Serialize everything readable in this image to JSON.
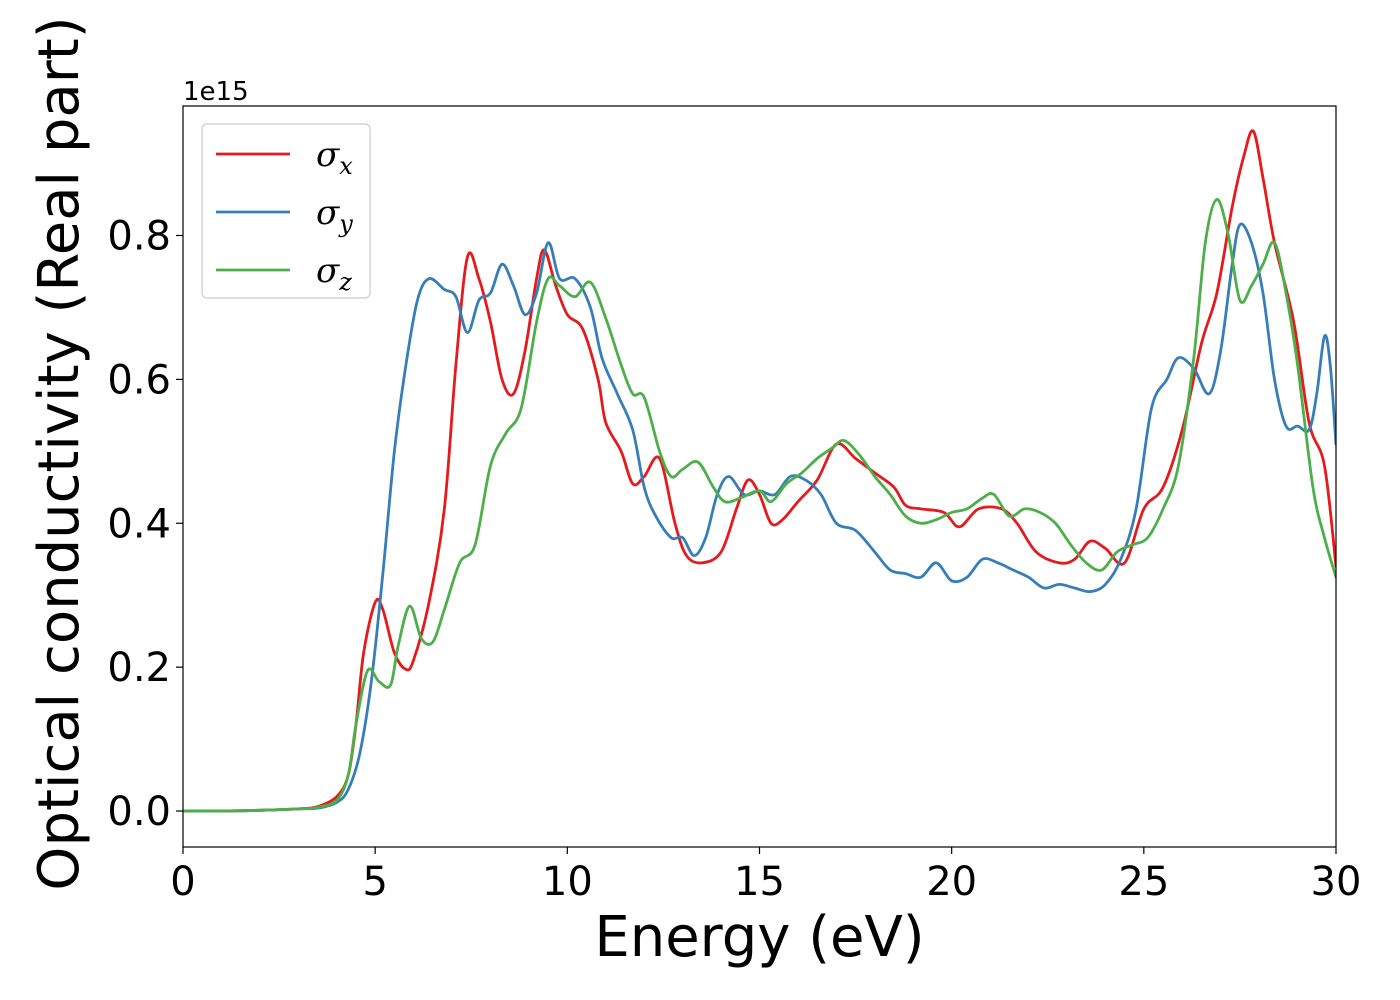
{
  "chart_data": {
    "type": "line",
    "title": "",
    "xlabel": "Energy (eV)",
    "ylabel": "Optical conductivity (Real part)",
    "y_offset_text": "1e15",
    "xlim": [
      0,
      30
    ],
    "ylim": [
      -0.05,
      0.98
    ],
    "xticks": [
      0,
      5,
      10,
      15,
      20,
      25,
      30
    ],
    "xtick_labels": [
      "0",
      "5",
      "10",
      "15",
      "20",
      "25",
      "30"
    ],
    "yticks": [
      0.0,
      0.2,
      0.4,
      0.6,
      0.8
    ],
    "ytick_labels": [
      "0.0",
      "0.2",
      "0.4",
      "0.6",
      "0.8"
    ],
    "grid": false,
    "legend_position": "top-left",
    "series": [
      {
        "name": "σx",
        "symbol": "σ",
        "subscript": "x",
        "color": "#e41a1c",
        "points": [
          [
            0,
            0
          ],
          [
            1,
            0
          ],
          [
            2,
            0.001
          ],
          [
            3,
            0.003
          ],
          [
            3.5,
            0.006
          ],
          [
            4,
            0.02
          ],
          [
            4.3,
            0.05
          ],
          [
            4.5,
            0.12
          ],
          [
            4.7,
            0.22
          ],
          [
            5,
            0.29
          ],
          [
            5.2,
            0.28
          ],
          [
            5.5,
            0.22
          ],
          [
            5.8,
            0.197
          ],
          [
            6,
            0.21
          ],
          [
            6.4,
            0.29
          ],
          [
            6.8,
            0.42
          ],
          [
            7.1,
            0.62
          ],
          [
            7.4,
            0.77
          ],
          [
            7.7,
            0.74
          ],
          [
            8,
            0.68
          ],
          [
            8.3,
            0.6
          ],
          [
            8.6,
            0.58
          ],
          [
            8.9,
            0.64
          ],
          [
            9.2,
            0.74
          ],
          [
            9.4,
            0.78
          ],
          [
            9.7,
            0.73
          ],
          [
            10,
            0.69
          ],
          [
            10.4,
            0.67
          ],
          [
            10.8,
            0.6
          ],
          [
            11,
            0.54
          ],
          [
            11.4,
            0.5
          ],
          [
            11.7,
            0.455
          ],
          [
            12,
            0.465
          ],
          [
            12.4,
            0.49
          ],
          [
            12.8,
            0.4
          ],
          [
            13.1,
            0.355
          ],
          [
            13.5,
            0.345
          ],
          [
            14,
            0.36
          ],
          [
            14.4,
            0.42
          ],
          [
            14.7,
            0.46
          ],
          [
            15,
            0.44
          ],
          [
            15.3,
            0.4
          ],
          [
            15.6,
            0.405
          ],
          [
            16,
            0.43
          ],
          [
            16.5,
            0.46
          ],
          [
            17,
            0.51
          ],
          [
            17.5,
            0.49
          ],
          [
            18,
            0.47
          ],
          [
            18.5,
            0.45
          ],
          [
            18.8,
            0.425
          ],
          [
            19.2,
            0.42
          ],
          [
            19.8,
            0.415
          ],
          [
            20.2,
            0.395
          ],
          [
            20.7,
            0.42
          ],
          [
            21.3,
            0.42
          ],
          [
            21.7,
            0.4
          ],
          [
            22.2,
            0.36
          ],
          [
            22.8,
            0.345
          ],
          [
            23.2,
            0.35
          ],
          [
            23.6,
            0.375
          ],
          [
            24,
            0.365
          ],
          [
            24.5,
            0.345
          ],
          [
            25,
            0.42
          ],
          [
            25.5,
            0.45
          ],
          [
            26,
            0.53
          ],
          [
            26.5,
            0.65
          ],
          [
            26.9,
            0.72
          ],
          [
            27.3,
            0.84
          ],
          [
            27.6,
            0.91
          ],
          [
            27.85,
            0.945
          ],
          [
            28.1,
            0.88
          ],
          [
            28.4,
            0.79
          ],
          [
            28.9,
            0.68
          ],
          [
            29.3,
            0.54
          ],
          [
            29.7,
            0.48
          ],
          [
            30,
            0.34
          ]
        ]
      },
      {
        "name": "σy",
        "symbol": "σ",
        "subscript": "y",
        "color": "#377eb8",
        "points": [
          [
            0,
            0
          ],
          [
            1,
            0
          ],
          [
            2,
            0.001
          ],
          [
            3,
            0.003
          ],
          [
            3.5,
            0.004
          ],
          [
            4,
            0.012
          ],
          [
            4.3,
            0.03
          ],
          [
            4.6,
            0.08
          ],
          [
            4.9,
            0.18
          ],
          [
            5.2,
            0.33
          ],
          [
            5.5,
            0.5
          ],
          [
            5.8,
            0.62
          ],
          [
            6.1,
            0.71
          ],
          [
            6.4,
            0.74
          ],
          [
            6.8,
            0.725
          ],
          [
            7.1,
            0.715
          ],
          [
            7.4,
            0.665
          ],
          [
            7.7,
            0.71
          ],
          [
            8,
            0.72
          ],
          [
            8.3,
            0.76
          ],
          [
            8.6,
            0.73
          ],
          [
            8.9,
            0.69
          ],
          [
            9.2,
            0.72
          ],
          [
            9.5,
            0.79
          ],
          [
            9.8,
            0.74
          ],
          [
            10.2,
            0.74
          ],
          [
            10.6,
            0.7
          ],
          [
            10.9,
            0.63
          ],
          [
            11.3,
            0.58
          ],
          [
            11.7,
            0.53
          ],
          [
            12,
            0.45
          ],
          [
            12.3,
            0.41
          ],
          [
            12.7,
            0.38
          ],
          [
            13,
            0.38
          ],
          [
            13.3,
            0.355
          ],
          [
            13.6,
            0.38
          ],
          [
            13.9,
            0.44
          ],
          [
            14.2,
            0.465
          ],
          [
            14.6,
            0.44
          ],
          [
            15,
            0.445
          ],
          [
            15.4,
            0.44
          ],
          [
            15.8,
            0.465
          ],
          [
            16.2,
            0.46
          ],
          [
            16.6,
            0.44
          ],
          [
            17,
            0.4
          ],
          [
            17.5,
            0.39
          ],
          [
            18,
            0.36
          ],
          [
            18.4,
            0.335
          ],
          [
            18.8,
            0.33
          ],
          [
            19.2,
            0.325
          ],
          [
            19.6,
            0.345
          ],
          [
            20,
            0.32
          ],
          [
            20.4,
            0.325
          ],
          [
            20.8,
            0.35
          ],
          [
            21.2,
            0.345
          ],
          [
            21.6,
            0.335
          ],
          [
            22,
            0.325
          ],
          [
            22.4,
            0.31
          ],
          [
            22.8,
            0.315
          ],
          [
            23.2,
            0.31
          ],
          [
            23.6,
            0.305
          ],
          [
            24,
            0.315
          ],
          [
            24.4,
            0.35
          ],
          [
            24.8,
            0.42
          ],
          [
            25.2,
            0.56
          ],
          [
            25.6,
            0.6
          ],
          [
            25.9,
            0.63
          ],
          [
            26.3,
            0.615
          ],
          [
            26.7,
            0.58
          ],
          [
            27,
            0.64
          ],
          [
            27.3,
            0.76
          ],
          [
            27.5,
            0.815
          ],
          [
            27.8,
            0.79
          ],
          [
            28.1,
            0.72
          ],
          [
            28.4,
            0.6
          ],
          [
            28.7,
            0.535
          ],
          [
            29,
            0.535
          ],
          [
            29.3,
            0.53
          ],
          [
            29.5,
            0.58
          ],
          [
            29.7,
            0.66
          ],
          [
            29.85,
            0.62
          ],
          [
            30,
            0.51
          ]
        ]
      },
      {
        "name": "σz",
        "symbol": "σ",
        "subscript": "z",
        "color": "#4daf4a",
        "points": [
          [
            0,
            0
          ],
          [
            1,
            0
          ],
          [
            2,
            0.001
          ],
          [
            3,
            0.003
          ],
          [
            3.5,
            0.005
          ],
          [
            4,
            0.015
          ],
          [
            4.3,
            0.05
          ],
          [
            4.5,
            0.12
          ],
          [
            4.8,
            0.195
          ],
          [
            5.1,
            0.18
          ],
          [
            5.4,
            0.175
          ],
          [
            5.6,
            0.23
          ],
          [
            5.9,
            0.285
          ],
          [
            6.2,
            0.24
          ],
          [
            6.5,
            0.235
          ],
          [
            6.8,
            0.28
          ],
          [
            7.2,
            0.345
          ],
          [
            7.6,
            0.37
          ],
          [
            8,
            0.48
          ],
          [
            8.4,
            0.525
          ],
          [
            8.8,
            0.56
          ],
          [
            9.2,
            0.68
          ],
          [
            9.5,
            0.74
          ],
          [
            9.8,
            0.73
          ],
          [
            10.2,
            0.715
          ],
          [
            10.6,
            0.735
          ],
          [
            11,
            0.685
          ],
          [
            11.4,
            0.62
          ],
          [
            11.7,
            0.58
          ],
          [
            12,
            0.575
          ],
          [
            12.4,
            0.5
          ],
          [
            12.7,
            0.465
          ],
          [
            13,
            0.475
          ],
          [
            13.4,
            0.485
          ],
          [
            13.8,
            0.45
          ],
          [
            14.1,
            0.43
          ],
          [
            14.5,
            0.435
          ],
          [
            15,
            0.445
          ],
          [
            15.3,
            0.43
          ],
          [
            15.7,
            0.455
          ],
          [
            16.1,
            0.47
          ],
          [
            16.5,
            0.49
          ],
          [
            16.9,
            0.505
          ],
          [
            17.2,
            0.515
          ],
          [
            17.6,
            0.495
          ],
          [
            18,
            0.465
          ],
          [
            18.4,
            0.44
          ],
          [
            18.8,
            0.41
          ],
          [
            19.2,
            0.4
          ],
          [
            19.6,
            0.405
          ],
          [
            20,
            0.415
          ],
          [
            20.4,
            0.42
          ],
          [
            20.8,
            0.435
          ],
          [
            21.1,
            0.44
          ],
          [
            21.5,
            0.41
          ],
          [
            21.9,
            0.42
          ],
          [
            22.3,
            0.415
          ],
          [
            22.7,
            0.4
          ],
          [
            23.1,
            0.37
          ],
          [
            23.5,
            0.345
          ],
          [
            23.9,
            0.335
          ],
          [
            24.3,
            0.36
          ],
          [
            24.7,
            0.37
          ],
          [
            25.1,
            0.38
          ],
          [
            25.5,
            0.42
          ],
          [
            25.9,
            0.48
          ],
          [
            26.3,
            0.63
          ],
          [
            26.6,
            0.79
          ],
          [
            26.9,
            0.85
          ],
          [
            27.2,
            0.8
          ],
          [
            27.5,
            0.71
          ],
          [
            27.8,
            0.73
          ],
          [
            28.1,
            0.76
          ],
          [
            28.4,
            0.79
          ],
          [
            28.7,
            0.72
          ],
          [
            29,
            0.62
          ],
          [
            29.4,
            0.45
          ],
          [
            29.7,
            0.38
          ],
          [
            30,
            0.325
          ]
        ]
      }
    ]
  }
}
